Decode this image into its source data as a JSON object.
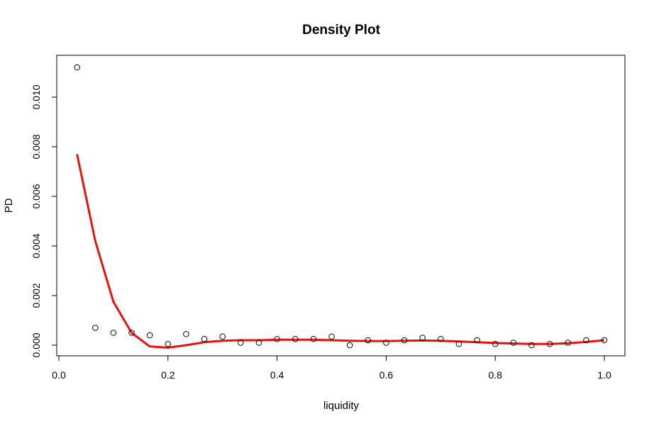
{
  "chart_data": {
    "type": "scatter",
    "title": "Density Plot",
    "xlabel": "liquidity",
    "ylabel": "PD",
    "xlim": [
      0.0,
      1.0
    ],
    "ylim": [
      0.0,
      0.011
    ],
    "x_ticks": [
      "0.0",
      "0.2",
      "0.4",
      "0.6",
      "0.8",
      "1.0"
    ],
    "y_ticks": [
      "0.000",
      "0.002",
      "0.004",
      "0.006",
      "0.008",
      "0.010"
    ],
    "grid": false,
    "legend": "none",
    "series": [
      {
        "kind": "points",
        "color": "#000000",
        "x": [
          0.0333,
          0.0667,
          0.1,
          0.1333,
          0.1667,
          0.2,
          0.2333,
          0.2667,
          0.3,
          0.3333,
          0.3667,
          0.4,
          0.4333,
          0.4667,
          0.5,
          0.5333,
          0.5667,
          0.6,
          0.6333,
          0.6667,
          0.7,
          0.7333,
          0.7667,
          0.8,
          0.8333,
          0.8667,
          0.9,
          0.9333,
          0.9667,
          1.0
        ],
        "y": [
          0.0112,
          0.0007,
          0.0005,
          0.0005,
          0.0004,
          5e-05,
          0.00045,
          0.00025,
          0.00035,
          0.0001,
          0.0001,
          0.00025,
          0.00025,
          0.00025,
          0.00035,
          0.0,
          0.0002,
          0.0001,
          0.0002,
          0.0003,
          0.00025,
          5e-05,
          0.0002,
          5e-05,
          0.0001,
          0.0,
          5e-05,
          0.0001,
          0.0002,
          0.0002
        ]
      },
      {
        "kind": "line",
        "color": "#e8120c",
        "x": [
          0.0333,
          0.0667,
          0.1,
          0.1333,
          0.1667,
          0.2,
          0.2333,
          0.2667,
          0.3,
          0.3333,
          0.3667,
          0.4,
          0.4333,
          0.4667,
          0.5,
          0.5333,
          0.5667,
          0.6,
          0.6333,
          0.6667,
          0.7,
          0.7333,
          0.7667,
          0.8,
          0.8333,
          0.8667,
          0.9,
          0.9333,
          0.9667,
          1.0
        ],
        "y": [
          0.0077,
          0.0042,
          0.00175,
          0.0005,
          -5e-05,
          -0.0001,
          0.0,
          0.00012,
          0.00018,
          0.0002,
          0.0002,
          0.00022,
          0.00022,
          0.00022,
          0.0002,
          0.00018,
          0.00017,
          0.00017,
          0.00018,
          0.00019,
          0.00018,
          0.00015,
          0.00012,
          9e-05,
          7e-05,
          5e-05,
          5e-05,
          8e-05,
          0.00013,
          0.0002
        ]
      }
    ]
  }
}
